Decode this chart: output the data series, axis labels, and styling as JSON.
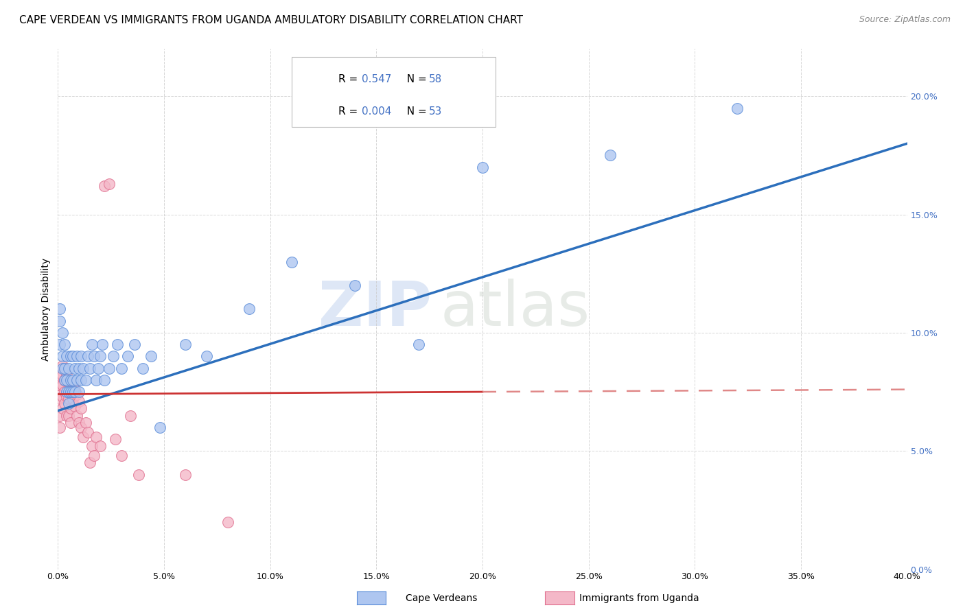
{
  "title": "CAPE VERDEAN VS IMMIGRANTS FROM UGANDA AMBULATORY DISABILITY CORRELATION CHART",
  "source": "Source: ZipAtlas.com",
  "xlim": [
    0,
    0.4
  ],
  "ylim": [
    0.0,
    0.22
  ],
  "ylabel": "Ambulatory Disability",
  "legend1_label_r": "R = 0.547",
  "legend1_label_n": "N = 58",
  "legend2_label_r": "R = 0.004",
  "legend2_label_n": "N = 53",
  "legend1_color": "#aec6f0",
  "legend2_color": "#f4b8c8",
  "blue_scatter_edge": "#5b8dd9",
  "pink_scatter_edge": "#e07090",
  "blue_line_color": "#2c6fbc",
  "red_line_color": "#cc3333",
  "red_line_dash_color": "#e08888",
  "watermark_zip_color": "#c8d8f0",
  "watermark_atlas_color": "#d0d8d0",
  "background_color": "#ffffff",
  "grid_color": "#cccccc",
  "title_fontsize": 11,
  "source_fontsize": 9,
  "axis_label_fontsize": 10,
  "tick_fontsize": 9,
  "legend_fontsize": 11,
  "right_tick_color": "#4472c4",
  "cv_blue_line_x0": 0.0,
  "cv_blue_line_y0": 0.067,
  "cv_blue_line_x1": 0.4,
  "cv_blue_line_y1": 0.18,
  "ug_red_line_x0": 0.0,
  "ug_red_line_y0": 0.074,
  "ug_red_line_x1": 0.2,
  "ug_red_line_y1": 0.075,
  "ug_dash_line_x0": 0.2,
  "ug_dash_line_y0": 0.075,
  "ug_dash_line_x1": 0.4,
  "ug_dash_line_y1": 0.076,
  "cape_verdean_x": [
    0.001,
    0.001,
    0.001,
    0.002,
    0.002,
    0.002,
    0.003,
    0.003,
    0.003,
    0.004,
    0.004,
    0.004,
    0.005,
    0.005,
    0.005,
    0.006,
    0.006,
    0.006,
    0.007,
    0.007,
    0.007,
    0.008,
    0.008,
    0.009,
    0.009,
    0.01,
    0.01,
    0.011,
    0.011,
    0.012,
    0.013,
    0.014,
    0.015,
    0.016,
    0.017,
    0.018,
    0.019,
    0.02,
    0.021,
    0.022,
    0.024,
    0.026,
    0.028,
    0.03,
    0.033,
    0.036,
    0.04,
    0.044,
    0.048,
    0.06,
    0.07,
    0.09,
    0.11,
    0.14,
    0.17,
    0.2,
    0.26,
    0.32
  ],
  "cape_verdean_y": [
    0.095,
    0.105,
    0.11,
    0.085,
    0.09,
    0.1,
    0.08,
    0.085,
    0.095,
    0.075,
    0.08,
    0.09,
    0.07,
    0.075,
    0.085,
    0.075,
    0.08,
    0.09,
    0.075,
    0.08,
    0.09,
    0.075,
    0.085,
    0.08,
    0.09,
    0.075,
    0.085,
    0.08,
    0.09,
    0.085,
    0.08,
    0.09,
    0.085,
    0.095,
    0.09,
    0.08,
    0.085,
    0.09,
    0.095,
    0.08,
    0.085,
    0.09,
    0.095,
    0.085,
    0.09,
    0.095,
    0.085,
    0.09,
    0.06,
    0.095,
    0.09,
    0.11,
    0.13,
    0.12,
    0.095,
    0.17,
    0.175,
    0.195
  ],
  "uganda_x": [
    0.0,
    0.0,
    0.0,
    0.0,
    0.001,
    0.001,
    0.001,
    0.001,
    0.001,
    0.002,
    0.002,
    0.002,
    0.002,
    0.002,
    0.003,
    0.003,
    0.003,
    0.003,
    0.004,
    0.004,
    0.004,
    0.005,
    0.005,
    0.005,
    0.006,
    0.006,
    0.006,
    0.007,
    0.007,
    0.008,
    0.008,
    0.009,
    0.009,
    0.01,
    0.01,
    0.011,
    0.011,
    0.012,
    0.013,
    0.014,
    0.015,
    0.016,
    0.017,
    0.018,
    0.02,
    0.022,
    0.024,
    0.027,
    0.03,
    0.034,
    0.038,
    0.06,
    0.08
  ],
  "uganda_y": [
    0.075,
    0.078,
    0.08,
    0.082,
    0.06,
    0.065,
    0.072,
    0.078,
    0.082,
    0.068,
    0.073,
    0.078,
    0.082,
    0.086,
    0.07,
    0.075,
    0.08,
    0.085,
    0.065,
    0.073,
    0.082,
    0.065,
    0.072,
    0.079,
    0.062,
    0.068,
    0.075,
    0.072,
    0.079,
    0.069,
    0.076,
    0.065,
    0.074,
    0.062,
    0.071,
    0.06,
    0.068,
    0.056,
    0.062,
    0.058,
    0.045,
    0.052,
    0.048,
    0.056,
    0.052,
    0.162,
    0.163,
    0.055,
    0.048,
    0.065,
    0.04,
    0.04,
    0.02
  ],
  "x_ticks": [
    0.0,
    0.05,
    0.1,
    0.15,
    0.2,
    0.25,
    0.3,
    0.35,
    0.4
  ],
  "y_ticks": [
    0.0,
    0.05,
    0.1,
    0.15,
    0.2
  ]
}
